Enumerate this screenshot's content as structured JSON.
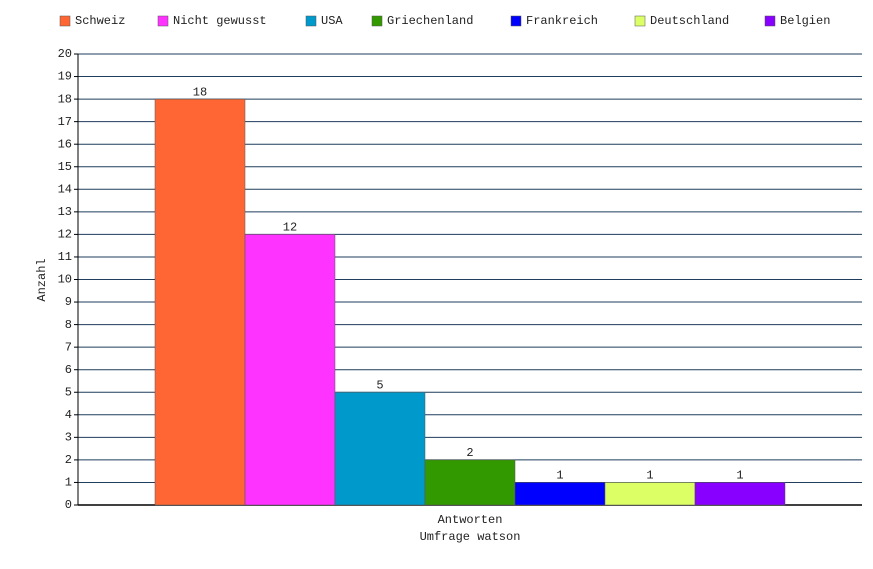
{
  "chart_data": {
    "type": "bar",
    "categories": [
      "Antworten"
    ],
    "xlabel": "Umfrage watson",
    "ylabel": "Anzahl",
    "series": [
      {
        "name": "Schweiz",
        "color": "#ff6633",
        "values": [
          18
        ]
      },
      {
        "name": "Nicht gewusst",
        "color": "#ff33ff",
        "values": [
          12
        ]
      },
      {
        "name": "USA",
        "color": "#0099cc",
        "values": [
          5
        ]
      },
      {
        "name": "Griechenland",
        "color": "#339900",
        "values": [
          2
        ]
      },
      {
        "name": "Frankreich",
        "color": "#0000ff",
        "values": [
          1
        ]
      },
      {
        "name": "Deutschland",
        "color": "#ddff66",
        "values": [
          1
        ]
      },
      {
        "name": "Belgien",
        "color": "#8800ff",
        "values": [
          1
        ]
      }
    ],
    "ylim": [
      0,
      20
    ],
    "yticks": [
      0,
      1,
      2,
      3,
      4,
      5,
      6,
      7,
      8,
      9,
      10,
      11,
      12,
      13,
      14,
      15,
      16,
      17,
      18,
      19,
      20
    ],
    "grid": true,
    "legend": "top"
  }
}
